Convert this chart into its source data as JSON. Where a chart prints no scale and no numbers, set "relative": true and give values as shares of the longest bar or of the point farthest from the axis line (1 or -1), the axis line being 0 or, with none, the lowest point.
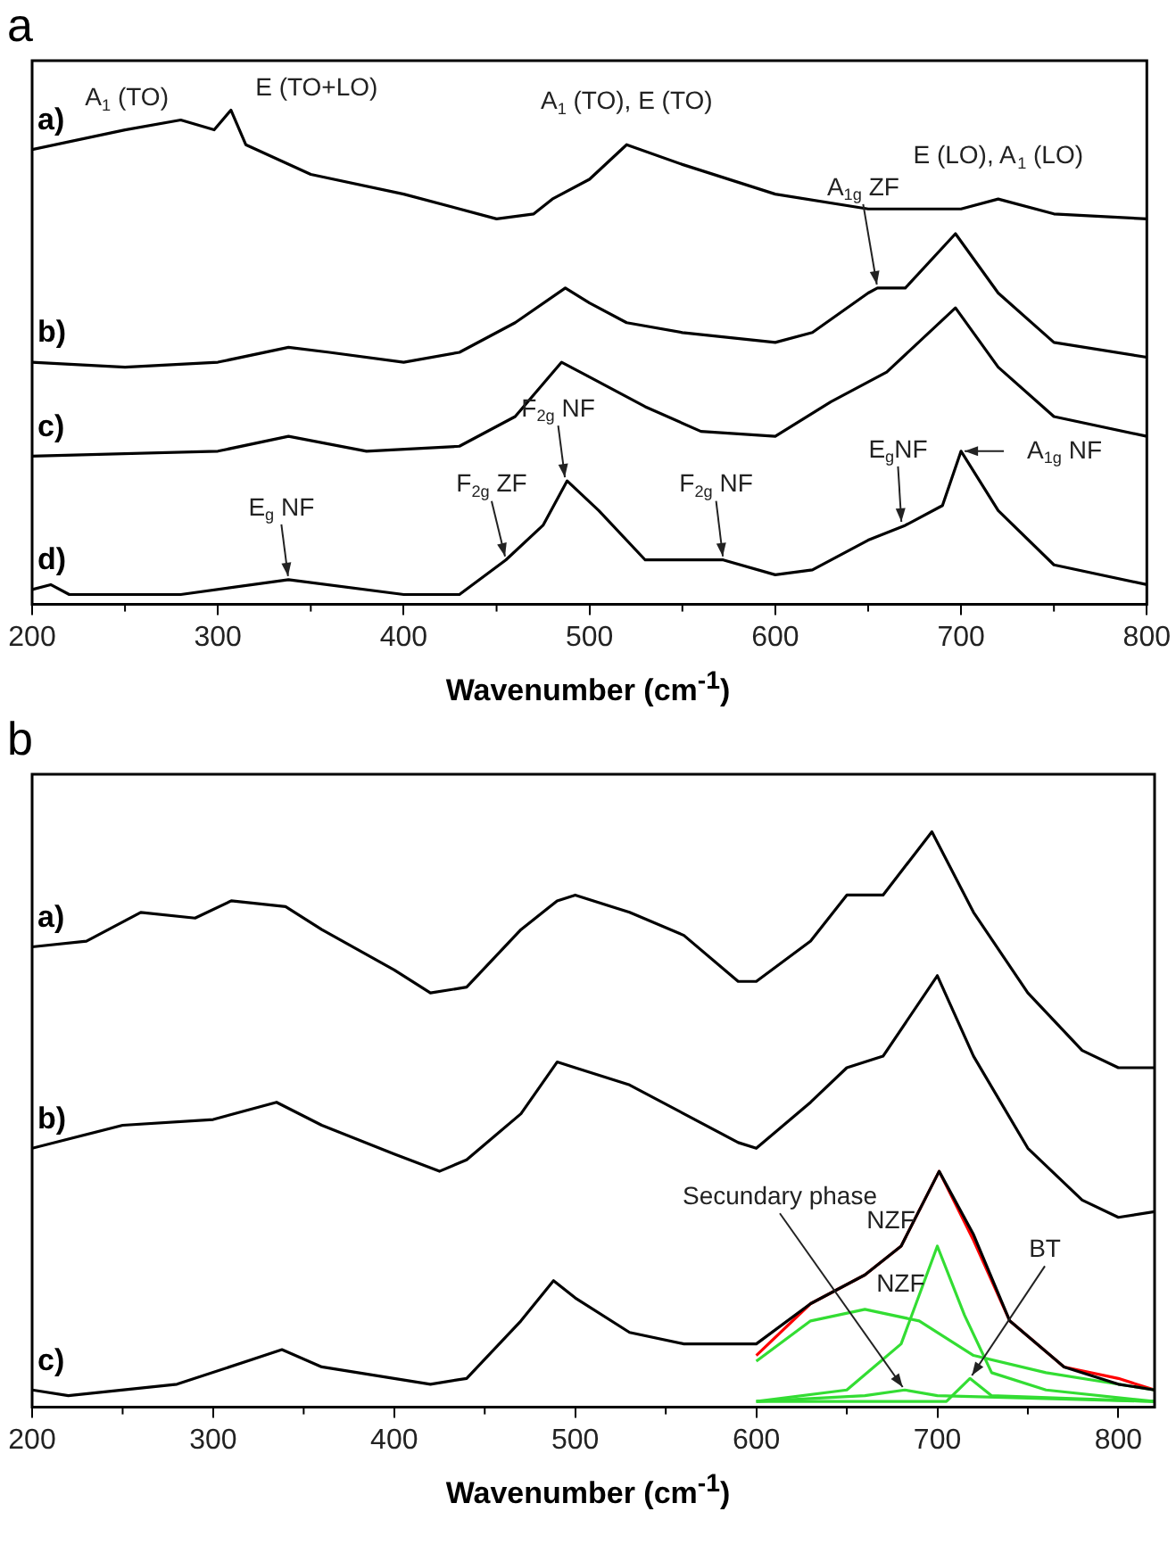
{
  "chart_data": [
    {
      "type": "line",
      "title": "a",
      "xlabel": "Wavenumber (cm$^{-1}$)",
      "relative": true,
      "xlim": [
        200,
        800
      ],
      "xticks": [
        200,
        300,
        400,
        500,
        600,
        700,
        800
      ],
      "tick_labels": "x",
      "marker": "none",
      "line_style": "solid",
      "series": [
        {
          "name": "a)",
          "color": "#000000",
          "x": [
            200,
            250,
            280,
            298,
            307,
            315,
            350,
            400,
            450,
            470,
            480,
            500,
            520,
            550,
            600,
            650,
            700,
            720,
            750,
            800
          ],
          "values": [
            0.92,
            0.96,
            0.98,
            0.96,
            1.0,
            0.93,
            0.87,
            0.83,
            0.78,
            0.79,
            0.82,
            0.86,
            0.93,
            0.89,
            0.83,
            0.8,
            0.8,
            0.82,
            0.79,
            0.78
          ]
        },
        {
          "name": "b)",
          "color": "#000000",
          "x": [
            200,
            250,
            300,
            338,
            360,
            400,
            430,
            460,
            487,
            500,
            520,
            550,
            600,
            620,
            650,
            655,
            670,
            697,
            720,
            750,
            800
          ],
          "values": [
            0.49,
            0.48,
            0.49,
            0.52,
            0.51,
            0.49,
            0.51,
            0.57,
            0.64,
            0.61,
            0.57,
            0.55,
            0.53,
            0.55,
            0.63,
            0.64,
            0.64,
            0.75,
            0.63,
            0.53,
            0.5
          ]
        },
        {
          "name": "c)",
          "color": "#000000",
          "x": [
            200,
            300,
            338,
            380,
            430,
            460,
            485,
            500,
            530,
            560,
            600,
            630,
            660,
            697,
            720,
            750,
            800
          ],
          "values": [
            0.3,
            0.31,
            0.34,
            0.31,
            0.32,
            0.38,
            0.49,
            0.46,
            0.4,
            0.35,
            0.34,
            0.41,
            0.47,
            0.6,
            0.48,
            0.38,
            0.34
          ]
        },
        {
          "name": "d)",
          "color": "#000000",
          "x": [
            200,
            210,
            220,
            280,
            338,
            400,
            430,
            455,
            475,
            488,
            505,
            530,
            560,
            572,
            600,
            620,
            650,
            670,
            690,
            700,
            720,
            750,
            800
          ],
          "values": [
            0.03,
            0.04,
            0.02,
            0.02,
            0.05,
            0.02,
            0.02,
            0.09,
            0.16,
            0.25,
            0.19,
            0.09,
            0.09,
            0.09,
            0.06,
            0.07,
            0.13,
            0.16,
            0.2,
            0.31,
            0.19,
            0.08,
            0.04
          ]
        }
      ],
      "annotations": [
        {
          "text": "A$_{1}$ (TO)",
          "x": 275,
          "y": 0.98
        },
        {
          "text": "E (TO+LO)",
          "x": 307,
          "y": 1.0
        },
        {
          "text": "A$_{1}$ (TO), E (TO)",
          "x": 520,
          "y": 0.93
        },
        {
          "text": "E (LO), A$_{1}$ (LO)",
          "x": 720,
          "y": 0.82
        },
        {
          "text": "A$_{1g}$ ZF",
          "x": 655,
          "y": 0.64
        },
        {
          "text": "F$_{2g}$ NF",
          "x": 487,
          "y": 0.25
        },
        {
          "text": "E$_{g}$ NF",
          "x": 338,
          "y": 0.05
        },
        {
          "text": "F$_{2g}$ ZF",
          "x": 455,
          "y": 0.09
        },
        {
          "text": "F$_{2g}$ NF",
          "x": 572,
          "y": 0.09
        },
        {
          "text": "E$_{g}$NF",
          "x": 668,
          "y": 0.16
        },
        {
          "text": "A$_{1g}$ NF",
          "x": 700,
          "y": 0.31
        }
      ]
    },
    {
      "type": "line",
      "title": "b",
      "xlabel": "Wavenumber (cm$^{-1}$)",
      "relative": true,
      "xlim": [
        200,
        820
      ],
      "xticks": [
        200,
        300,
        400,
        500,
        600,
        700,
        800
      ],
      "tick_labels": "x",
      "marker": "none",
      "line_style": "solid",
      "series": [
        {
          "name": "a)",
          "color": "#000000",
          "x": [
            200,
            230,
            260,
            290,
            310,
            340,
            360,
            400,
            420,
            440,
            470,
            490,
            500,
            530,
            560,
            590,
            600,
            630,
            650,
            670,
            697,
            720,
            750,
            780,
            800,
            820
          ],
          "values": [
            0.8,
            0.81,
            0.86,
            0.85,
            0.88,
            0.87,
            0.83,
            0.76,
            0.72,
            0.73,
            0.83,
            0.88,
            0.89,
            0.86,
            0.82,
            0.74,
            0.74,
            0.81,
            0.89,
            0.89,
            1.0,
            0.86,
            0.72,
            0.62,
            0.59,
            0.59
          ]
        },
        {
          "name": "b)",
          "color": "#000000",
          "x": [
            200,
            250,
            300,
            335,
            360,
            400,
            425,
            440,
            470,
            490,
            500,
            530,
            560,
            590,
            600,
            630,
            650,
            670,
            700,
            720,
            750,
            780,
            800,
            820
          ],
          "values": [
            0.45,
            0.49,
            0.5,
            0.53,
            0.49,
            0.44,
            0.41,
            0.43,
            0.51,
            0.6,
            0.59,
            0.56,
            0.51,
            0.46,
            0.45,
            0.53,
            0.59,
            0.61,
            0.75,
            0.61,
            0.45,
            0.36,
            0.33,
            0.34
          ]
        },
        {
          "name": "c)",
          "color": "#000000",
          "x": [
            200,
            220,
            280,
            338,
            360,
            420,
            440,
            470,
            488,
            500,
            530,
            560,
            600,
            630,
            660,
            680,
            701,
            720,
            740,
            770,
            800,
            820
          ],
          "values": [
            0.03,
            0.02,
            0.04,
            0.1,
            0.07,
            0.04,
            0.05,
            0.15,
            0.22,
            0.19,
            0.13,
            0.11,
            0.11,
            0.18,
            0.23,
            0.28,
            0.41,
            0.3,
            0.15,
            0.07,
            0.04,
            0.03
          ]
        },
        {
          "color": "#33dd33",
          "x": [
            600,
            630,
            660,
            690,
            720,
            760,
            820
          ],
          "values": [
            0.08,
            0.15,
            0.17,
            0.15,
            0.09,
            0.06,
            0.03
          ]
        },
        {
          "color": "#33dd33",
          "x": [
            600,
            650,
            680,
            700,
            715,
            730,
            760,
            820
          ],
          "values": [
            0.01,
            0.03,
            0.11,
            0.28,
            0.16,
            0.06,
            0.03,
            0.01
          ]
        },
        {
          "color": "#33dd33",
          "x": [
            600,
            660,
            682,
            700,
            820
          ],
          "values": [
            0.01,
            0.02,
            0.03,
            0.02,
            0.01
          ]
        },
        {
          "color": "#33dd33",
          "x": [
            600,
            705,
            718,
            730,
            820
          ],
          "values": [
            0.01,
            0.01,
            0.05,
            0.02,
            0.01
          ]
        },
        {
          "color": "#ff0000",
          "x": [
            600,
            630,
            660,
            680,
            701,
            720,
            740,
            770,
            800,
            820
          ],
          "values": [
            0.09,
            0.18,
            0.23,
            0.28,
            0.41,
            0.29,
            0.15,
            0.07,
            0.05,
            0.03
          ]
        }
      ],
      "annotations": [
        {
          "text": "Secundary phase",
          "x": 682,
          "y": 0.03
        },
        {
          "text": "NZF",
          "x": 660,
          "y": 0.17
        },
        {
          "text": "NZF",
          "x": 700,
          "y": 0.28
        },
        {
          "text": "BT",
          "x": 718,
          "y": 0.05
        }
      ]
    }
  ]
}
